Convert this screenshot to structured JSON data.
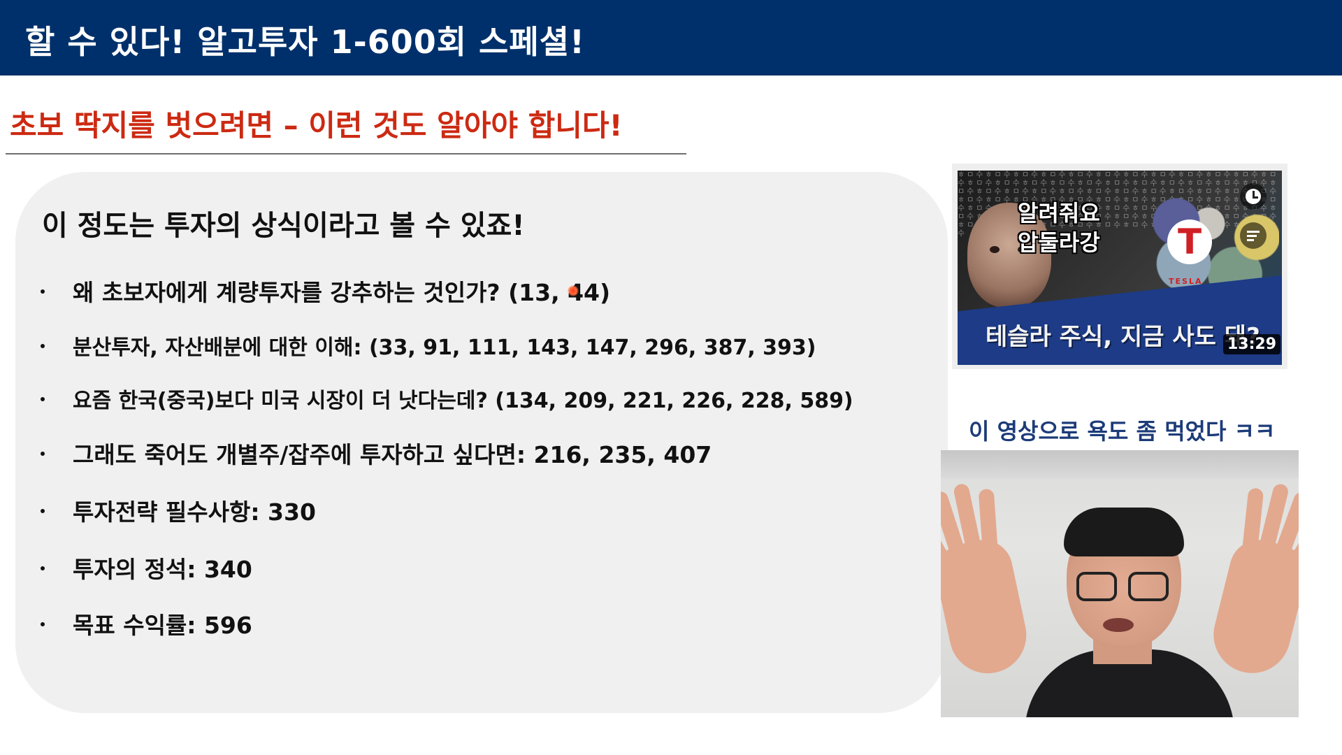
{
  "header": {
    "title": "할 수 있다! 알고투자 1-600회 스페셜!"
  },
  "subtitle": "초보 딱지를 벗으려면 – 이런 것도 알아야 합니다!",
  "card": {
    "heading": "이 정도는 투자의 상식이라고 볼 수 있죠!",
    "bullets": [
      {
        "text": "왜 초보자에게 계량투자를 강추하는 것인가? (13, 44)"
      },
      {
        "text": "분산투자, 자산배분에 대한 이해: (33, 91, 111, 143, 147, 296, 387, 393)"
      },
      {
        "text": "요즘 한국(중국)보다 미국 시장이 더 낫다는데? (134, 209, 221, 226, 228, 589)"
      },
      {
        "text": "그래도 죽어도 개별주/잡주에 투자하고 싶다면: 216, 235, 407"
      },
      {
        "text": "투자전략 필수사항: 330"
      },
      {
        "text": "투자의 정석: 340"
      },
      {
        "text": "목표 수익률: 596"
      }
    ]
  },
  "video_thumbnail": {
    "overlay_line1": "알려줘요",
    "overlay_line2": "압둘라강",
    "brand_text": "TESLA",
    "banner_title": "테슬라 주식, 지금 사도 돼?",
    "duration": "13:29",
    "watch_later_icon": "clock-icon",
    "add_to_queue_icon": "queue-icon"
  },
  "caption": "이 영상으로 욕도 좀 먹었다 ㅋㅋ",
  "colors": {
    "header_bg": "#00306b",
    "subtitle": "#cc2a12",
    "caption": "#1c3b78",
    "card_bg": "#f0f0f0"
  }
}
